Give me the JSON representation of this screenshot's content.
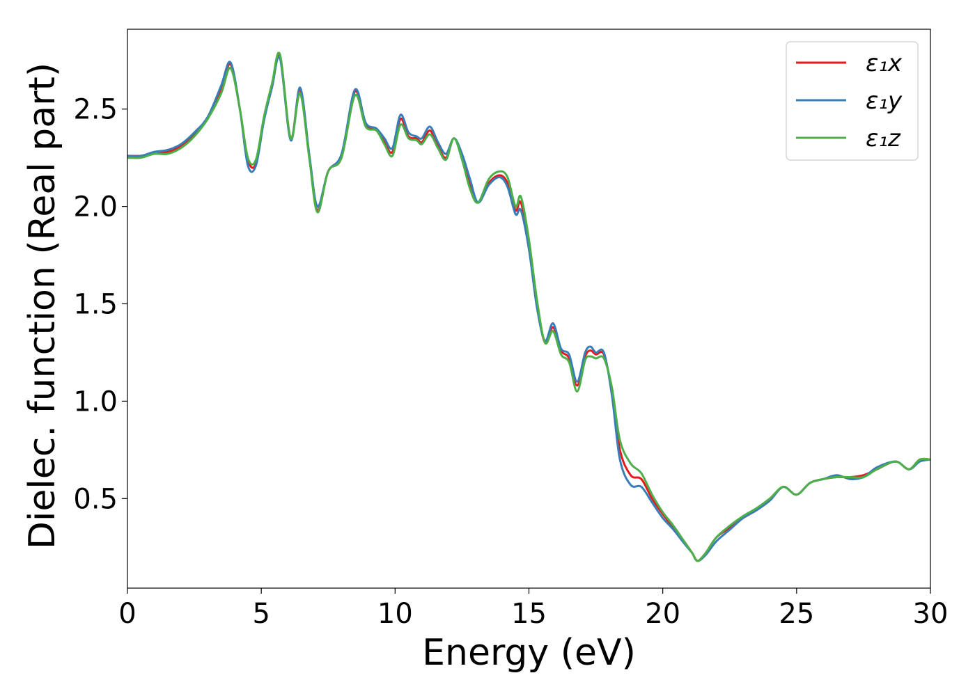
{
  "chart_data": {
    "type": "line",
    "title": "",
    "xlabel": "Energy (eV)",
    "ylabel": "Dielec. function (Real part)",
    "xlim": [
      0,
      30
    ],
    "ylim": [
      0.04,
      2.91
    ],
    "xticks": [
      0,
      5,
      10,
      15,
      20,
      25,
      30
    ],
    "xtick_labels": [
      "0",
      "5",
      "10",
      "15",
      "20",
      "25",
      "30"
    ],
    "yticks": [
      0.5,
      1.0,
      1.5,
      2.0,
      2.5
    ],
    "ytick_labels": [
      "0.5",
      "1.0",
      "1.5",
      "2.0",
      "2.5"
    ],
    "grid": false,
    "legend_position": "top-right",
    "x": [
      0,
      0.5,
      1.0,
      1.5,
      2.0,
      2.5,
      3.0,
      3.5,
      3.85,
      4.2,
      4.5,
      4.8,
      5.1,
      5.4,
      5.7,
      6.1,
      6.45,
      6.8,
      7.1,
      7.5,
      8.0,
      8.5,
      8.9,
      9.3,
      9.6,
      9.9,
      10.2,
      10.5,
      10.8,
      11.0,
      11.3,
      11.6,
      11.9,
      12.2,
      12.5,
      12.8,
      13.1,
      13.5,
      13.9,
      14.2,
      14.5,
      14.7,
      15.0,
      15.3,
      15.6,
      15.9,
      16.2,
      16.5,
      16.8,
      17.1,
      17.3,
      17.5,
      17.8,
      18.1,
      18.4,
      18.8,
      19.2,
      19.6,
      20.0,
      20.4,
      20.8,
      21.1,
      21.3,
      21.6,
      22.0,
      22.5,
      23.0,
      23.5,
      24.0,
      24.5,
      25.0,
      25.5,
      26.0,
      26.5,
      27.0,
      27.5,
      28.0,
      28.7,
      29.2,
      29.6,
      30.0
    ],
    "series": [
      {
        "name": "ε₁x",
        "color": "#e41a1c",
        "values": [
          2.26,
          2.26,
          2.27,
          2.28,
          2.31,
          2.37,
          2.45,
          2.6,
          2.73,
          2.5,
          2.24,
          2.22,
          2.45,
          2.62,
          2.77,
          2.35,
          2.6,
          2.25,
          1.98,
          2.18,
          2.26,
          2.59,
          2.42,
          2.4,
          2.33,
          2.28,
          2.45,
          2.36,
          2.35,
          2.33,
          2.39,
          2.31,
          2.25,
          2.35,
          2.25,
          2.11,
          2.02,
          2.12,
          2.16,
          2.12,
          1.98,
          2.02,
          1.8,
          1.5,
          1.3,
          1.38,
          1.26,
          1.22,
          1.08,
          1.23,
          1.26,
          1.24,
          1.24,
          1.05,
          0.75,
          0.62,
          0.6,
          0.5,
          0.42,
          0.35,
          0.28,
          0.22,
          0.18,
          0.22,
          0.3,
          0.35,
          0.4,
          0.44,
          0.49,
          0.56,
          0.52,
          0.58,
          0.6,
          0.61,
          0.61,
          0.62,
          0.65,
          0.69,
          0.65,
          0.7,
          0.7
        ]
      },
      {
        "name": "ε₁y",
        "color": "#377eb8",
        "values": [
          2.26,
          2.26,
          2.28,
          2.29,
          2.32,
          2.38,
          2.46,
          2.62,
          2.74,
          2.5,
          2.21,
          2.21,
          2.44,
          2.61,
          2.76,
          2.34,
          2.61,
          2.26,
          2.0,
          2.18,
          2.27,
          2.6,
          2.43,
          2.4,
          2.35,
          2.3,
          2.47,
          2.38,
          2.36,
          2.35,
          2.41,
          2.33,
          2.27,
          2.35,
          2.27,
          2.14,
          2.02,
          2.11,
          2.15,
          2.1,
          1.96,
          1.98,
          1.78,
          1.48,
          1.31,
          1.4,
          1.27,
          1.24,
          1.1,
          1.25,
          1.28,
          1.25,
          1.25,
          1.03,
          0.7,
          0.57,
          0.56,
          0.48,
          0.4,
          0.34,
          0.27,
          0.22,
          0.18,
          0.21,
          0.28,
          0.34,
          0.4,
          0.44,
          0.49,
          0.56,
          0.52,
          0.58,
          0.6,
          0.62,
          0.6,
          0.61,
          0.66,
          0.69,
          0.65,
          0.69,
          0.7
        ]
      },
      {
        "name": "ε₁z",
        "color": "#4daf4a",
        "values": [
          2.25,
          2.25,
          2.27,
          2.27,
          2.3,
          2.36,
          2.45,
          2.58,
          2.71,
          2.5,
          2.25,
          2.24,
          2.46,
          2.63,
          2.78,
          2.35,
          2.58,
          2.24,
          1.97,
          2.18,
          2.25,
          2.57,
          2.41,
          2.39,
          2.32,
          2.26,
          2.42,
          2.35,
          2.34,
          2.32,
          2.37,
          2.3,
          2.24,
          2.35,
          2.24,
          2.09,
          2.02,
          2.14,
          2.18,
          2.15,
          2.0,
          2.05,
          1.83,
          1.52,
          1.3,
          1.36,
          1.24,
          1.2,
          1.05,
          1.21,
          1.23,
          1.22,
          1.22,
          1.07,
          0.8,
          0.68,
          0.63,
          0.52,
          0.43,
          0.36,
          0.28,
          0.22,
          0.18,
          0.22,
          0.3,
          0.36,
          0.41,
          0.45,
          0.5,
          0.56,
          0.52,
          0.58,
          0.6,
          0.61,
          0.61,
          0.61,
          0.65,
          0.69,
          0.65,
          0.7,
          0.7
        ]
      }
    ]
  }
}
